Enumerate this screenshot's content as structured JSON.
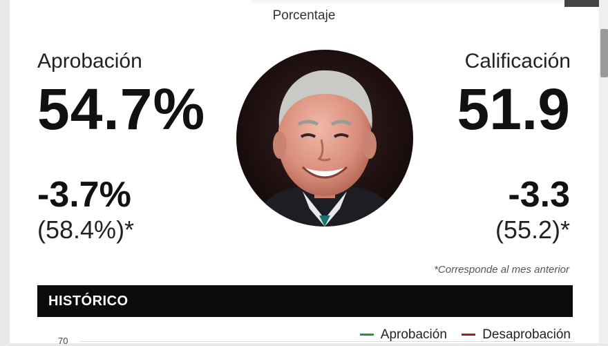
{
  "header": {
    "subtitle": "Porcentaje"
  },
  "approval": {
    "label": "Aprobación",
    "value": "54.7%",
    "change": "-3.7%",
    "previous": "(58.4%)*"
  },
  "rating": {
    "label": "Calificación",
    "value": "51.9",
    "change": "-3.3",
    "previous": "(55.2)*"
  },
  "footnote": "*Corresponde al mes anterior",
  "historico": {
    "title": "HISTÓRICO",
    "legend": [
      {
        "label": "Aprobación",
        "color": "#1a9a3a"
      },
      {
        "label": "Desaprobación",
        "color": "#a01c1c"
      }
    ],
    "axis_top_tick": "70"
  },
  "colors": {
    "background": "#ffffff",
    "bar": "#0b0b0b"
  }
}
